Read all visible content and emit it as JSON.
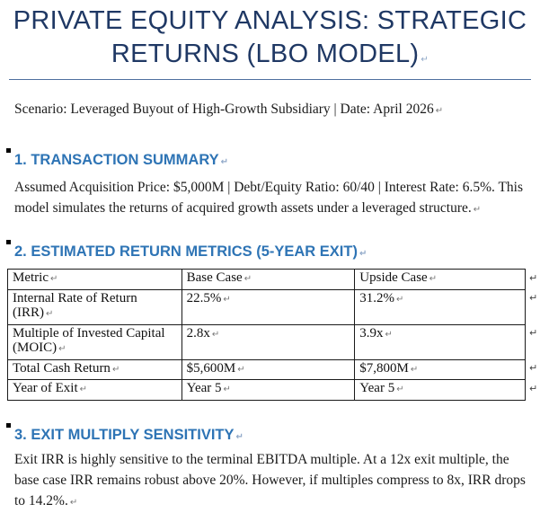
{
  "page": {
    "title": {
      "line1": "PRIVATE EQUITY ANALYSIS: STRATEGIC",
      "line2": "RETURNS (LBO MODEL)"
    },
    "scenario": "Scenario: Leveraged Buyout of High-Growth Subsidiary | Date: April 2026",
    "sections": {
      "s1": {
        "heading": "1. TRANSACTION SUMMARY",
        "body": "Assumed Acquisition Price: $5,000M | Debt/Equity Ratio: 60/40 | Interest Rate: 6.5%. This model simulates the returns of acquired growth assets under a leveraged structure."
      },
      "s2": {
        "heading": "2. ESTIMATED RETURN METRICS (5-YEAR EXIT)"
      },
      "s3": {
        "heading": "3. EXIT MULTIPLY SENSITIVITY",
        "body": "Exit IRR is highly sensitive to the terminal EBITDA multiple. At a 12x exit multiple, the base case IRR remains robust above 20%. However, if multiples compress to 8x, IRR drops to 14.2%."
      }
    },
    "table": {
      "headers": [
        "Metric",
        "Base Case",
        "Upside Case"
      ],
      "rows": [
        [
          "Internal Rate of Return (IRR)",
          "22.5%",
          "31.2%"
        ],
        [
          "Multiple of Invested Capital (MOIC)",
          "2.8x",
          "3.9x"
        ],
        [
          "Total Cash Return",
          "$5,600M",
          "$7,800M"
        ],
        [
          "Year of Exit",
          "Year 5",
          "Year 5"
        ]
      ]
    },
    "marks": {
      "paragraph_mark": "↵"
    },
    "colors": {
      "title_navy": "#1f3864",
      "heading_blue": "#2e74b5",
      "rule_blue": "#4f6f9f",
      "body_text": "#1a1a1a",
      "table_border": "#1a1a1a"
    }
  }
}
